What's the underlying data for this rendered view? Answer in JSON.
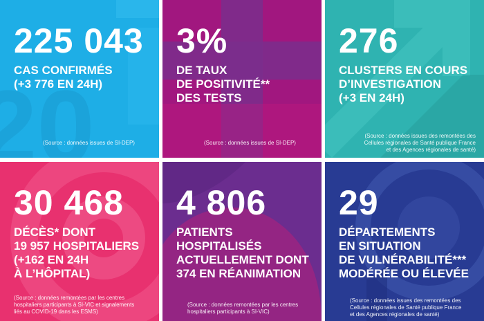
{
  "colors": {
    "tile1": "#1EAEE6",
    "tile2": "#A1177F",
    "tile3": "#2FB3B1",
    "tile4": "#E8316F",
    "tile5": "#6B2D8F",
    "tile6": "#283B93"
  },
  "tiles": [
    {
      "number": "225 043",
      "lines": [
        "CAS CONFIRMÉS",
        "(+3 776 EN 24H)"
      ],
      "source": "(Source : données issues de SI-DEP)"
    },
    {
      "number": "3%",
      "lines": [
        "DE TAUX",
        "DE POSITIVITÉ**",
        "DES TESTS"
      ],
      "source": "(Source : données issues de SI-DEP)"
    },
    {
      "number": "276",
      "lines": [
        "CLUSTERS EN COURS",
        "D’INVESTIGATION",
        "(+3 EN 24H)"
      ],
      "source_lines": [
        "(Source : données issues des remontées des",
        "Cellules régionales de Santé publique France",
        "et des Agences régionales de santé)"
      ]
    },
    {
      "number": "30 468",
      "lines": [
        "DÉCÈS* DONT",
        "19 957 HOSPITALIERS",
        "(+162 EN 24H",
        "À L’HÔPITAL)"
      ],
      "source_lines": [
        "(Source : données remontées par les centres",
        "hospitaliers participants à SI-VIC et signalements",
        "liés au COVID-19 dans les ESMS)"
      ]
    },
    {
      "number": "4 806",
      "lines": [
        "PATIENTS",
        "HOSPITALISÉS",
        "ACTUELLEMENT DONT",
        "374 EN RÉANIMATION"
      ],
      "source_lines": [
        "(Source : données remontées par les centres",
        "hospitaliers participants à SI-VIC)"
      ]
    },
    {
      "number": "29",
      "lines": [
        "DÉPARTEMENTS",
        "EN SITUATION",
        "DE VULNÉRABILITÉ***",
        "MODÉRÉE OU ÉLEVÉE"
      ],
      "source_lines": [
        "(Source : données issues des remontées des",
        "Cellules régionales de Santé publique France",
        "et des Agences régionales de santé)"
      ]
    }
  ]
}
